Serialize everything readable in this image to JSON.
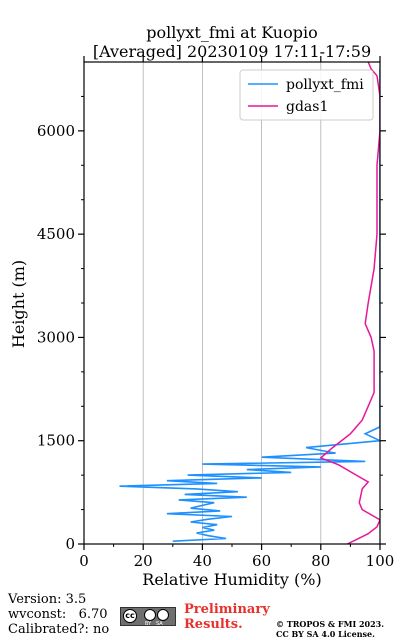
{
  "chart_data": {
    "type": "line",
    "title": "pollyxt_fmi at Kuopio",
    "subtitle": "[Averaged] 20230109 17:11-17:59",
    "xlabel": "Relative Humidity (%)",
    "ylabel": "Height (m)",
    "xlim": [
      0,
      100
    ],
    "ylim": [
      0,
      7000
    ],
    "xticks": [
      "0",
      "20",
      "40",
      "60",
      "80",
      "100"
    ],
    "yticks": [
      "0",
      "1500",
      "3000",
      "4500",
      "6000"
    ],
    "grid": "vertical",
    "legend": "top-right",
    "series": [
      {
        "name": "pollyxt_fmi",
        "color": "#1e90ff",
        "height": [
          40,
          80,
          120,
          160,
          200,
          240,
          280,
          320,
          360,
          400,
          440,
          480,
          520,
          560,
          600,
          640,
          680,
          720,
          760,
          800,
          840,
          880,
          920,
          960,
          1000,
          1040,
          1080,
          1120,
          1160,
          1200,
          1260,
          1320,
          1400,
          1500,
          1600,
          1700,
          1800,
          2000,
          2500,
          3000,
          3500,
          4000,
          4500,
          5000,
          5500,
          6000,
          6500,
          6900
        ],
        "rh": [
          30,
          48,
          42,
          38,
          44,
          40,
          45,
          36,
          42,
          50,
          28,
          46,
          36,
          40,
          44,
          32,
          55,
          34,
          52,
          38,
          12,
          45,
          28,
          60,
          35,
          70,
          55,
          80,
          40,
          95,
          60,
          85,
          75,
          100,
          95,
          100,
          100,
          100,
          100,
          100,
          100,
          100,
          100,
          100,
          100,
          100,
          100,
          100
        ]
      },
      {
        "name": "gdas1",
        "color": "#e6179a",
        "height": [
          0,
          150,
          250,
          350,
          500,
          600,
          800,
          900,
          1000,
          1150,
          1250,
          1400,
          1600,
          1800,
          2000,
          2200,
          2500,
          2800,
          3000,
          3200,
          3500,
          4000,
          4500,
          5000,
          5500,
          6000,
          6500,
          6800,
          6900,
          7000
        ],
        "rh": [
          89,
          96,
          99,
          100,
          94,
          93,
          94,
          96,
          92,
          86,
          80,
          84,
          90,
          94,
          96,
          98,
          98,
          98,
          97,
          95,
          96,
          98,
          99,
          99,
          99,
          100,
          100,
          99,
          97,
          96
        ]
      }
    ]
  },
  "footer": {
    "version": "Version: 3.5",
    "wvconst": "wvconst:   6.70",
    "calibrated": "Calibrated?: no",
    "preliminary_line1": "Preliminary",
    "preliminary_line2": "Results.",
    "copyright_line1": "© TROPOS & FMI 2023.",
    "copyright_line2": "CC BY SA 4.0 License."
  }
}
